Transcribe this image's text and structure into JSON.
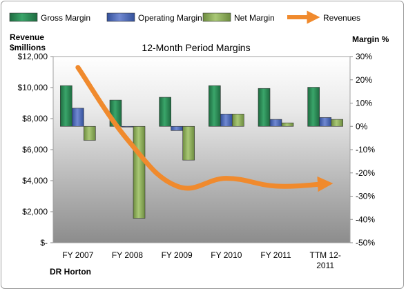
{
  "chart_data": {
    "type": "bar",
    "title": "12-Month Period Margins",
    "company_label": "DR Horton",
    "categories": [
      "FY 2007",
      "FY 2008",
      "FY 2009",
      "FY 2010",
      "FY 2011",
      "TTM 12-2011"
    ],
    "category_lines": [
      [
        "FY 2007"
      ],
      [
        "FY 2008"
      ],
      [
        "FY 2009"
      ],
      [
        "FY 2010"
      ],
      [
        "FY 2011"
      ],
      [
        "TTM 12-",
        "2011"
      ]
    ],
    "series": [
      {
        "name": "Gross Margin",
        "axis": "right",
        "unit": "%",
        "values": [
          17.5,
          11.3,
          12.5,
          17.5,
          16.3,
          16.8
        ],
        "color": "#2e8b57"
      },
      {
        "name": "Operating Margin",
        "axis": "right",
        "unit": "%",
        "values": [
          7.8,
          -0.3,
          -1.8,
          5.3,
          3.0,
          3.8
        ],
        "color": "#4f6bbd"
      },
      {
        "name": "Net Margin",
        "axis": "right",
        "unit": "%",
        "values": [
          -6.0,
          -39.5,
          -14.5,
          5.3,
          1.5,
          3.0
        ],
        "color": "#8daf5b"
      },
      {
        "name": "Revenues",
        "axis": "left",
        "unit": "$ millions",
        "type": "line",
        "values": [
          11300,
          6650,
          3650,
          4150,
          3650,
          3800
        ],
        "color": "#f08a2d"
      }
    ],
    "y_left": {
      "label_lines": [
        "Revenue",
        "$millions"
      ],
      "ylim": [
        0,
        12000
      ],
      "ticks": [
        0,
        2000,
        4000,
        6000,
        8000,
        10000,
        12000
      ],
      "tick_labels": [
        "$-",
        "$2,000",
        "$4,000",
        "$6,000",
        "$8,000",
        "$10,000",
        "$12,000"
      ]
    },
    "y_right": {
      "label": "Margin %",
      "ylim": [
        -50,
        30
      ],
      "ticks": [
        -50,
        -40,
        -30,
        -20,
        -10,
        0,
        10,
        20,
        30
      ],
      "tick_labels": [
        "-50%",
        "-40%",
        "-30%",
        "-20%",
        "-10%",
        "0%",
        "10%",
        "20%",
        "30%"
      ]
    },
    "legend_position": "top",
    "grid": false,
    "plot_background": [
      "#ffffff",
      "#8c8c8c"
    ]
  }
}
